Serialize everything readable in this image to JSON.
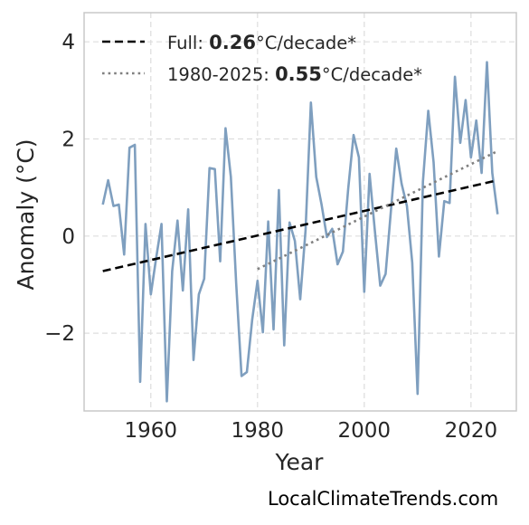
{
  "chart_data": {
    "type": "line",
    "xlabel": "Year",
    "ylabel": "Anomaly (°C)",
    "xlim": [
      1947.5,
      2028.5
    ],
    "ylim": [
      -3.6,
      4.6
    ],
    "xticks": [
      1960,
      1980,
      2000,
      2020
    ],
    "yticks": [
      -2,
      0,
      2,
      4
    ],
    "ytick_labels": [
      "−2",
      "0",
      "2",
      "4"
    ],
    "grid": true,
    "legend_position": "top-left",
    "series": [
      {
        "kind": "line",
        "color": "#7f9fbf",
        "x": [
          1951,
          1952,
          1953,
          1954,
          1955,
          1956,
          1957,
          1958,
          1959,
          1960,
          1961,
          1962,
          1963,
          1964,
          1965,
          1966,
          1967,
          1968,
          1969,
          1970,
          1971,
          1972,
          1973,
          1974,
          1975,
          1976,
          1977,
          1978,
          1979,
          1980,
          1981,
          1982,
          1983,
          1984,
          1985,
          1986,
          1987,
          1988,
          1989,
          1990,
          1991,
          1992,
          1993,
          1994,
          1995,
          1996,
          1997,
          1998,
          1999,
          2000,
          2001,
          2002,
          2003,
          2004,
          2005,
          2006,
          2007,
          2008,
          2009,
          2010,
          2011,
          2012,
          2013,
          2014,
          2015,
          2016,
          2017,
          2018,
          2019,
          2020,
          2021,
          2022,
          2023,
          2024,
          2025
        ],
        "y": [
          0.65,
          1.15,
          0.62,
          0.65,
          -0.38,
          1.82,
          1.88,
          -3.0,
          0.25,
          -1.2,
          -0.45,
          0.25,
          -3.4,
          -0.72,
          0.32,
          -1.12,
          0.55,
          -2.55,
          -1.2,
          -0.88,
          1.4,
          1.38,
          -0.52,
          2.22,
          1.22,
          -0.98,
          -2.88,
          -2.8,
          -1.72,
          -0.92,
          -1.98,
          0.3,
          -1.92,
          0.95,
          -2.25,
          0.28,
          -0.1,
          -1.3,
          0.12,
          2.75,
          1.22,
          0.65,
          -0.02,
          0.15,
          -0.58,
          -0.32,
          0.98,
          2.08,
          1.62,
          -1.15,
          1.28,
          0.1,
          -1.02,
          -0.78,
          0.52,
          1.8,
          1.08,
          0.62,
          -0.55,
          -3.25,
          1.12,
          2.58,
          1.52,
          -0.42,
          0.72,
          0.68,
          3.28,
          1.92,
          2.8,
          1.62,
          2.38,
          1.3,
          3.58,
          1.3,
          0.45
        ]
      },
      {
        "name": "Full: 0.26°C/decade*",
        "kind": "trend",
        "style": "dashed",
        "color": "#000000",
        "x": [
          1951,
          2025
        ],
        "y": [
          -0.72,
          1.15
        ]
      },
      {
        "name": "1980-2025: 0.55°C/decade*",
        "kind": "trend",
        "style": "dotted",
        "color": "#808080",
        "x": [
          1980,
          2025
        ],
        "y": [
          -0.68,
          1.75
        ]
      }
    ]
  },
  "legend": {
    "full_prefix": "Full: ",
    "full_value": "0.26",
    "full_suffix": "°C/decade*",
    "recent_prefix": "1980-2025: ",
    "recent_value": "0.55",
    "recent_suffix": "°C/decade*"
  },
  "watermark": "LocalClimateTrends.com"
}
